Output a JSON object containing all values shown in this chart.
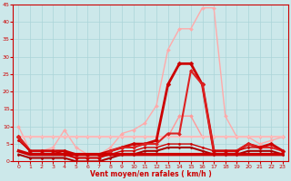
{
  "xlabel": "Vent moyen/en rafales ( km/h )",
  "xlim": [
    -0.5,
    23.5
  ],
  "ylim": [
    0,
    45
  ],
  "yticks": [
    0,
    5,
    10,
    15,
    20,
    25,
    30,
    35,
    40,
    45
  ],
  "xticks": [
    0,
    1,
    2,
    3,
    4,
    5,
    6,
    7,
    8,
    9,
    10,
    11,
    12,
    13,
    14,
    15,
    16,
    17,
    18,
    19,
    20,
    21,
    22,
    23
  ],
  "background_color": "#cce8ea",
  "grid_color": "#aad4d8",
  "series": [
    {
      "x": [
        0,
        1,
        2,
        3,
        4,
        5,
        6,
        7,
        8,
        9,
        10,
        11,
        12,
        13,
        14,
        15,
        16,
        17,
        18,
        19,
        20,
        21,
        22,
        23
      ],
      "y": [
        10,
        3,
        3,
        4,
        9,
        4,
        2,
        2,
        4,
        8,
        9,
        11,
        16,
        32,
        38,
        38,
        44,
        44,
        13,
        7,
        7,
        5,
        6,
        7
      ],
      "color": "#ffaaaa",
      "lw": 1.0,
      "marker": "D",
      "ms": 2.0
    },
    {
      "x": [
        0,
        1,
        2,
        3,
        4,
        5,
        6,
        7,
        8,
        9,
        10,
        11,
        12,
        13,
        14,
        15,
        16,
        17,
        18,
        19,
        20,
        21,
        22,
        23
      ],
      "y": [
        7,
        7,
        7,
        7,
        7,
        7,
        7,
        7,
        7,
        7,
        7,
        7,
        7,
        7,
        13,
        13,
        7,
        7,
        7,
        7,
        7,
        7,
        7,
        7
      ],
      "color": "#ff9999",
      "lw": 1.0,
      "marker": "D",
      "ms": 2.0
    },
    {
      "x": [
        0,
        1,
        2,
        3,
        4,
        5,
        6,
        7,
        8,
        9,
        10,
        11,
        12,
        13,
        14,
        15,
        16,
        17,
        18,
        19,
        20,
        21,
        22,
        23
      ],
      "y": [
        7,
        7,
        7,
        7,
        7,
        7,
        7,
        7,
        7,
        7,
        7,
        7,
        7,
        7,
        7,
        7,
        7,
        7,
        7,
        7,
        7,
        7,
        7,
        7
      ],
      "color": "#ffbbbb",
      "lw": 1.5,
      "marker": "D",
      "ms": 1.5
    },
    {
      "x": [
        0,
        1,
        2,
        3,
        4,
        5,
        6,
        7,
        8,
        9,
        10,
        11,
        12,
        13,
        14,
        15,
        16,
        17,
        18,
        19,
        20,
        21,
        22,
        23
      ],
      "y": [
        7,
        3,
        3,
        3,
        3,
        2,
        2,
        2,
        3,
        4,
        5,
        5,
        6,
        22,
        28,
        28,
        22,
        3,
        3,
        3,
        5,
        4,
        5,
        3
      ],
      "color": "#cc0000",
      "lw": 2.0,
      "marker": "D",
      "ms": 2.5
    },
    {
      "x": [
        0,
        1,
        2,
        3,
        4,
        5,
        6,
        7,
        8,
        9,
        10,
        11,
        12,
        13,
        14,
        15,
        16,
        17,
        18,
        19,
        20,
        21,
        22,
        23
      ],
      "y": [
        7,
        3,
        3,
        3,
        2,
        1,
        1,
        1,
        3,
        4,
        4,
        5,
        5,
        8,
        8,
        26,
        22,
        3,
        3,
        3,
        5,
        4,
        4,
        3
      ],
      "color": "#dd2222",
      "lw": 1.5,
      "marker": "D",
      "ms": 2.0
    },
    {
      "x": [
        0,
        1,
        2,
        3,
        4,
        5,
        6,
        7,
        8,
        9,
        10,
        11,
        12,
        13,
        14,
        15,
        16,
        17,
        18,
        19,
        20,
        21,
        22,
        23
      ],
      "y": [
        6,
        3,
        3,
        3,
        2,
        1,
        1,
        1,
        2,
        3,
        3,
        4,
        4,
        5,
        5,
        5,
        4,
        3,
        3,
        3,
        4,
        4,
        5,
        3
      ],
      "color": "#cc0000",
      "lw": 1.0,
      "marker": "D",
      "ms": 1.5
    },
    {
      "x": [
        0,
        1,
        2,
        3,
        4,
        5,
        6,
        7,
        8,
        9,
        10,
        11,
        12,
        13,
        14,
        15,
        16,
        17,
        18,
        19,
        20,
        21,
        22,
        23
      ],
      "y": [
        2,
        1,
        1,
        1,
        1,
        0,
        0,
        0,
        1,
        2,
        2,
        3,
        3,
        4,
        4,
        4,
        3,
        2,
        2,
        2,
        3,
        3,
        3,
        2
      ],
      "color": "#aa0000",
      "lw": 1.5,
      "marker": "D",
      "ms": 1.5
    },
    {
      "x": [
        0,
        1,
        2,
        3,
        4,
        5,
        6,
        7,
        8,
        9,
        10,
        11,
        12,
        13,
        14,
        15,
        16,
        17,
        18,
        19,
        20,
        21,
        22,
        23
      ],
      "y": [
        3,
        2,
        2,
        2,
        2,
        2,
        2,
        2,
        2,
        2,
        2,
        2,
        2,
        2,
        2,
        2,
        2,
        2,
        2,
        2,
        2,
        2,
        2,
        2
      ],
      "color": "#cc0000",
      "lw": 2.5,
      "marker": null,
      "ms": 0
    }
  ]
}
